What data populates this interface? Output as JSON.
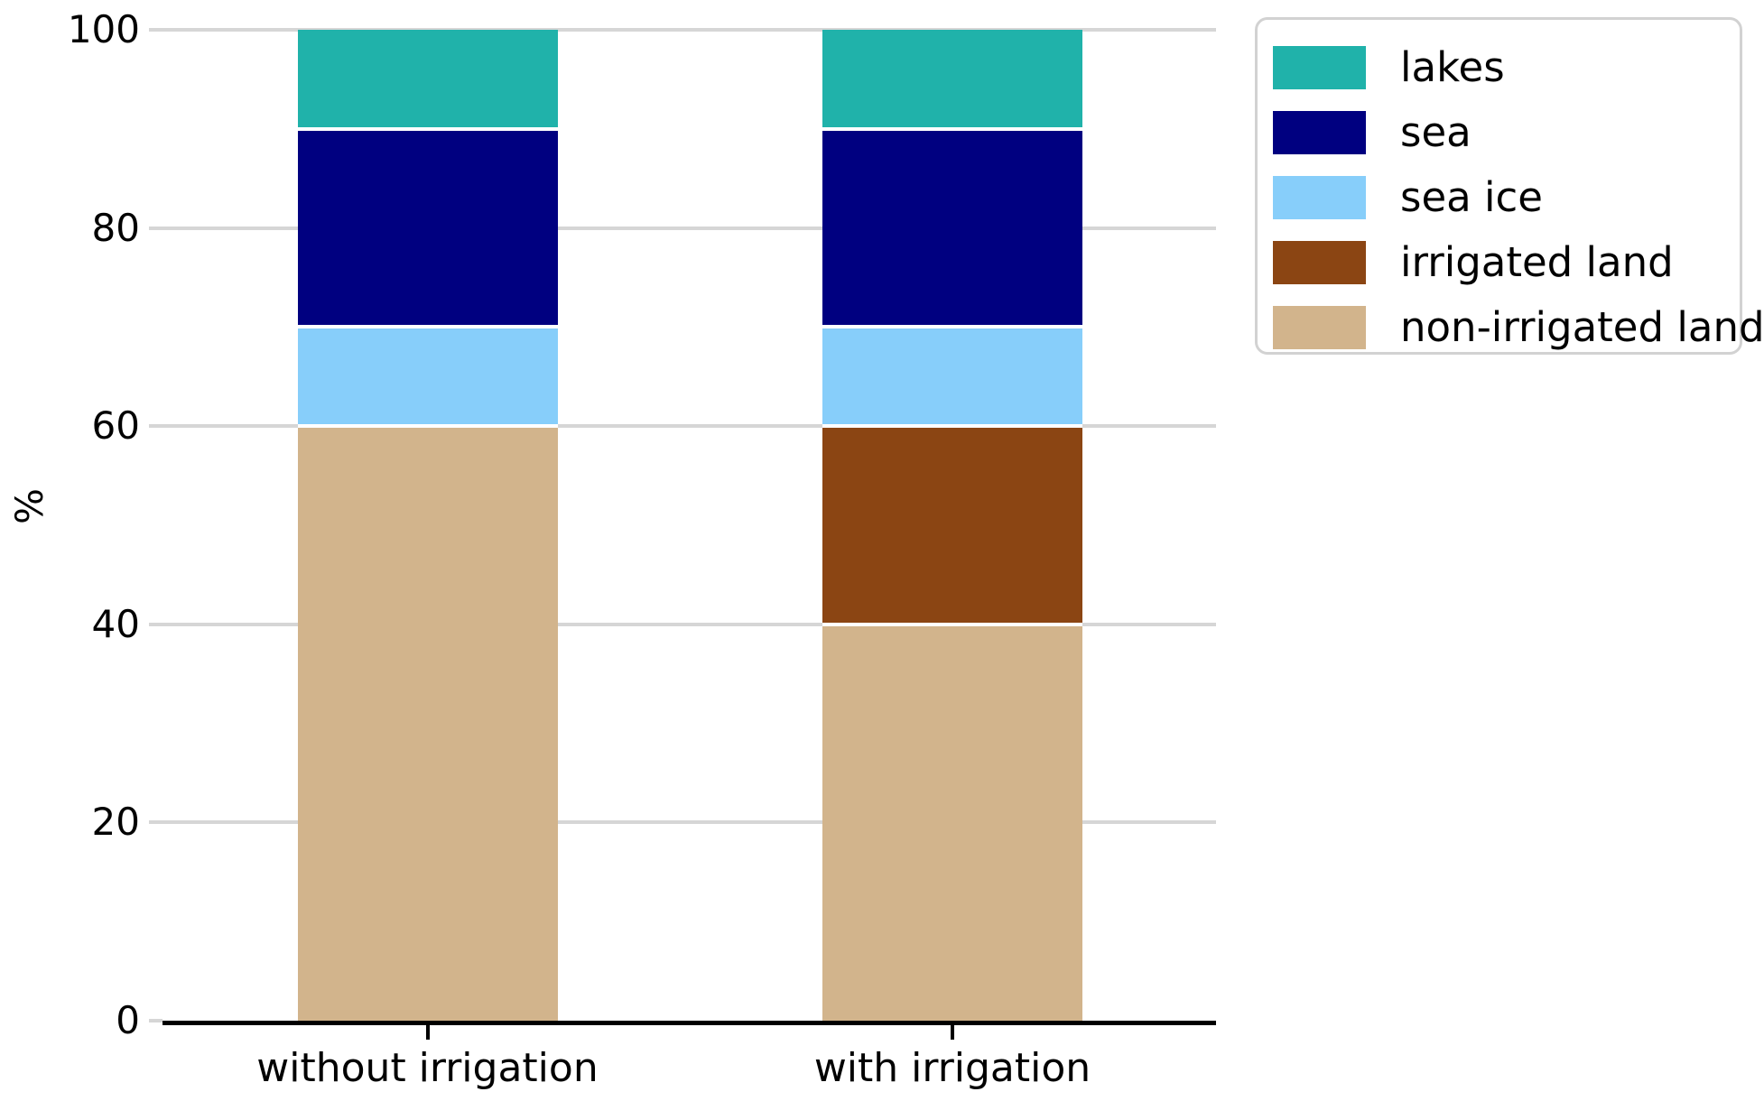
{
  "chart_data": {
    "type": "bar",
    "stacked": true,
    "title": "",
    "categories": [
      "without irrigation",
      "with irrigation"
    ],
    "series": [
      {
        "name": "non-irrigated land",
        "color": "#D2B48C",
        "values": [
          60,
          40
        ]
      },
      {
        "name": "irrigated land",
        "color": "#8B4513",
        "values": [
          0,
          20
        ]
      },
      {
        "name": "sea ice",
        "color": "#87CEFA",
        "values": [
          10,
          10
        ]
      },
      {
        "name": "sea",
        "color": "#000080",
        "values": [
          20,
          20
        ]
      },
      {
        "name": "lakes",
        "color": "#20B2AA",
        "values": [
          10,
          10
        ]
      }
    ],
    "xlabel": "",
    "ylabel": "%",
    "ylim": [
      0,
      100
    ],
    "yticks": [
      0,
      20,
      40,
      60,
      80,
      100
    ],
    "grid": "horizontal",
    "legend": {
      "position": "upper-right-outside",
      "entries": [
        "lakes",
        "sea",
        "sea ice",
        "irrigated land",
        "non-irrigated land"
      ]
    },
    "style_colors": {
      "gridline": "#d6d6d6",
      "axis_line": "#000000",
      "legend_border": "#d2d2d2",
      "background": "#ffffff"
    }
  }
}
